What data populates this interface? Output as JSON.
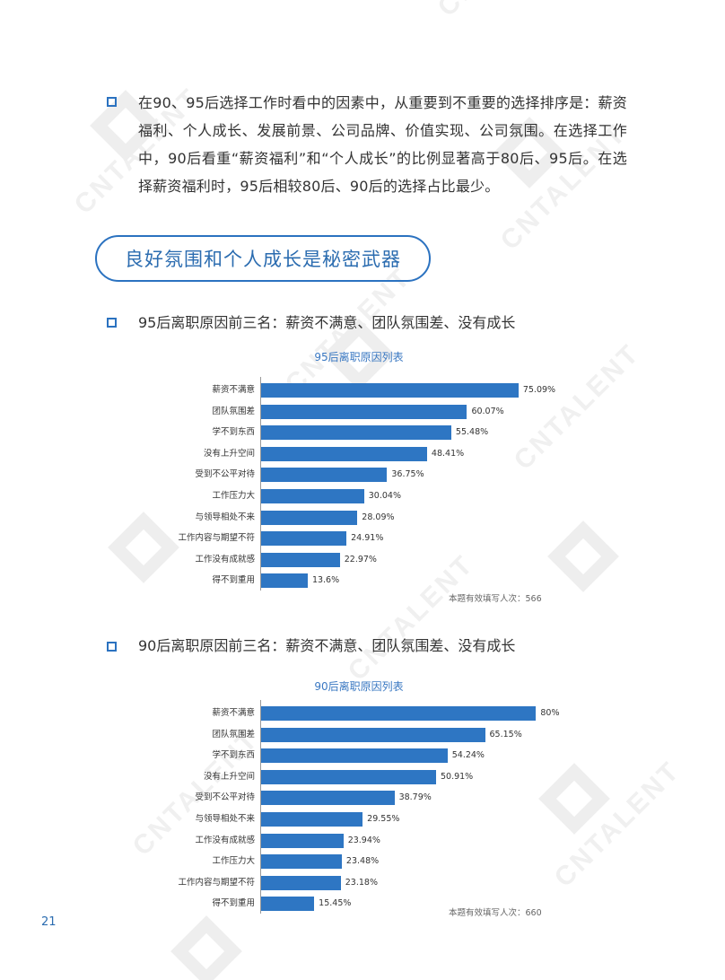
{
  "intro": {
    "text": "在90、95后选择工作时看中的因素中，从重要到不重要的选择排序是：薪资福利、个人成长、发展前景、公司品牌、价值实现、公司氛围。在选择工作中，90后看重“薪资福利”和“个人成长”的比例显著高于80后、95后。在选择薪资福利时，95后相较80后、90后的选择占比最少。"
  },
  "section_title": "良好氛围和个人成长是秘密武器",
  "subheads": {
    "s95": "95后离职原因前三名：薪资不满意、团队氛围差、没有成长",
    "s90": "90后离职原因前三名：薪资不满意、团队氛围差、没有成长"
  },
  "watermark": "CNTALENT",
  "page_number": "21",
  "chart_data": [
    {
      "type": "bar",
      "orientation": "horizontal",
      "title": "95后离职原因列表",
      "categories": [
        "薪资不满意",
        "团队氛围差",
        "学不到东西",
        "没有上升空间",
        "受到不公平对待",
        "工作压力大",
        "与领导相处不来",
        "工作内容与期望不符",
        "工作没有成就感",
        "得不到重用"
      ],
      "values": [
        75.09,
        60.07,
        55.48,
        48.41,
        36.75,
        30.04,
        28.09,
        24.91,
        22.97,
        13.6
      ],
      "labels": [
        "75.09%",
        "60.07%",
        "55.48%",
        "48.41%",
        "36.75%",
        "30.04%",
        "28.09%",
        "24.91%",
        "22.97%",
        "13.6%"
      ],
      "note": "本题有效填写人次：566",
      "color": "#2e76c3"
    },
    {
      "type": "bar",
      "orientation": "horizontal",
      "title": "90后离职原因列表",
      "categories": [
        "薪资不满意",
        "团队氛围差",
        "学不到东西",
        "没有上升空间",
        "受到不公平对待",
        "与领导相处不来",
        "工作没有成就感",
        "工作压力大",
        "工作内容与期望不符",
        "得不到重用"
      ],
      "values": [
        80,
        65.15,
        54.24,
        50.91,
        38.79,
        29.55,
        23.94,
        23.48,
        23.18,
        15.45
      ],
      "labels": [
        "80%",
        "65.15%",
        "54.24%",
        "50.91%",
        "38.79%",
        "29.55%",
        "23.94%",
        "23.48%",
        "23.18%",
        "15.45%"
      ],
      "note": "本题有效填写人次：660",
      "color": "#2e76c3"
    }
  ]
}
